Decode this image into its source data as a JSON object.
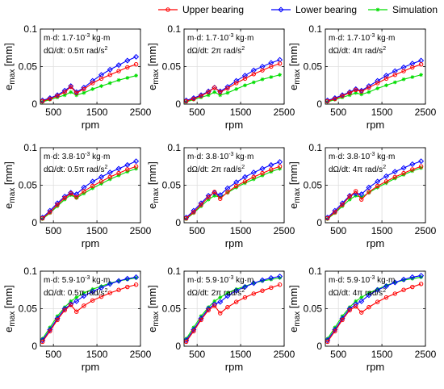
{
  "figure": {
    "x_label": "rpm",
    "y_label_main": "e",
    "y_label_sub": "max",
    "y_label_unit": " [mm]"
  },
  "legend": {
    "entries": [
      {
        "label": "Upper bearing",
        "color": "#ff0000",
        "marker": "circle"
      },
      {
        "label": "Lower bearing",
        "color": "#0000ff",
        "marker": "diamond"
      },
      {
        "label": "Simulation",
        "color": "#00dd00",
        "marker": "star"
      }
    ]
  },
  "colors": {
    "upper": "#ff0000",
    "lower": "#0000ff",
    "simulation": "#00dd00"
  },
  "chart_data": [
    {
      "type": "line",
      "row": 1,
      "col": 1,
      "annotation": {
        "md_value": "1.7",
        "md_exp": "-3",
        "md_unit": " kg·m",
        "rate_value": "0.5π",
        "rate_unit": " rad/s",
        "rate_exp": "2"
      },
      "xlim": [
        200,
        2500
      ],
      "ylim": [
        0,
        0.1
      ],
      "xticks": [
        500,
        1500,
        2500
      ],
      "yticks": [
        0,
        0.05,
        0.1
      ],
      "grid": true,
      "x": [
        250,
        420,
        590,
        760,
        900,
        1030,
        1200,
        1400,
        1600,
        1800,
        2000,
        2200,
        2400
      ],
      "series": [
        {
          "name": "Upper bearing",
          "values": [
            0.004,
            0.007,
            0.011,
            0.016,
            0.023,
            0.015,
            0.02,
            0.028,
            0.034,
            0.039,
            0.044,
            0.049,
            0.053
          ]
        },
        {
          "name": "Lower bearing",
          "values": [
            0.005,
            0.008,
            0.012,
            0.018,
            0.024,
            0.016,
            0.022,
            0.031,
            0.039,
            0.046,
            0.052,
            0.058,
            0.063
          ]
        },
        {
          "name": "Simulation",
          "values": [
            0.003,
            0.006,
            0.009,
            0.012,
            0.016,
            0.012,
            0.015,
            0.02,
            0.024,
            0.028,
            0.032,
            0.035,
            0.038
          ]
        }
      ]
    },
    {
      "type": "line",
      "row": 1,
      "col": 2,
      "annotation": {
        "md_value": "1.7",
        "md_exp": "-3",
        "md_unit": " kg·m",
        "rate_value": "2π",
        "rate_unit": " rad/s",
        "rate_exp": "2"
      },
      "xlim": [
        200,
        2500
      ],
      "ylim": [
        0,
        0.1
      ],
      "xticks": [
        500,
        1500,
        2500
      ],
      "yticks": [
        0,
        0.05,
        0.1
      ],
      "grid": true,
      "x": [
        250,
        420,
        590,
        760,
        900,
        1030,
        1200,
        1400,
        1600,
        1800,
        2000,
        2200,
        2400
      ],
      "series": [
        {
          "name": "Upper bearing",
          "values": [
            0.004,
            0.007,
            0.011,
            0.016,
            0.022,
            0.016,
            0.021,
            0.028,
            0.034,
            0.04,
            0.045,
            0.05,
            0.054
          ]
        },
        {
          "name": "Lower bearing",
          "values": [
            0.005,
            0.008,
            0.012,
            0.017,
            0.022,
            0.017,
            0.023,
            0.031,
            0.038,
            0.045,
            0.05,
            0.055,
            0.059
          ]
        },
        {
          "name": "Simulation",
          "values": [
            0.003,
            0.006,
            0.009,
            0.012,
            0.016,
            0.012,
            0.015,
            0.02,
            0.025,
            0.029,
            0.033,
            0.036,
            0.039
          ]
        }
      ]
    },
    {
      "type": "line",
      "row": 1,
      "col": 3,
      "annotation": {
        "md_value": "1.7",
        "md_exp": "-3",
        "md_unit": " kg·m",
        "rate_value": "4π",
        "rate_unit": " rad/s",
        "rate_exp": "2"
      },
      "xlim": [
        200,
        2500
      ],
      "ylim": [
        0,
        0.1
      ],
      "xticks": [
        500,
        1500,
        2500
      ],
      "yticks": [
        0,
        0.05,
        0.1
      ],
      "grid": true,
      "x": [
        250,
        420,
        590,
        760,
        900,
        1030,
        1200,
        1400,
        1600,
        1800,
        2000,
        2200,
        2400
      ],
      "series": [
        {
          "name": "Upper bearing",
          "values": [
            0.004,
            0.007,
            0.011,
            0.015,
            0.019,
            0.017,
            0.022,
            0.028,
            0.034,
            0.039,
            0.044,
            0.049,
            0.053
          ]
        },
        {
          "name": "Lower bearing",
          "values": [
            0.005,
            0.008,
            0.012,
            0.016,
            0.02,
            0.018,
            0.024,
            0.031,
            0.038,
            0.044,
            0.049,
            0.054,
            0.058
          ]
        },
        {
          "name": "Simulation",
          "values": [
            0.003,
            0.006,
            0.009,
            0.012,
            0.015,
            0.013,
            0.016,
            0.021,
            0.025,
            0.029,
            0.033,
            0.036,
            0.039
          ]
        }
      ]
    },
    {
      "type": "line",
      "row": 2,
      "col": 1,
      "annotation": {
        "md_value": "3.8",
        "md_exp": "-3",
        "md_unit": " kg·m",
        "rate_value": "0.5π",
        "rate_unit": " rad/s",
        "rate_exp": "2"
      },
      "xlim": [
        200,
        2500
      ],
      "ylim": [
        0,
        0.1
      ],
      "xticks": [
        500,
        1500,
        2500
      ],
      "yticks": [
        0,
        0.05,
        0.1
      ],
      "grid": true,
      "x": [
        250,
        420,
        590,
        760,
        900,
        1030,
        1200,
        1400,
        1600,
        1800,
        2000,
        2200,
        2400
      ],
      "series": [
        {
          "name": "Upper bearing",
          "values": [
            0.006,
            0.014,
            0.024,
            0.033,
            0.039,
            0.034,
            0.042,
            0.049,
            0.055,
            0.061,
            0.066,
            0.071,
            0.075
          ]
        },
        {
          "name": "Lower bearing",
          "values": [
            0.007,
            0.016,
            0.026,
            0.035,
            0.04,
            0.038,
            0.047,
            0.055,
            0.061,
            0.067,
            0.072,
            0.077,
            0.082
          ]
        },
        {
          "name": "Simulation",
          "values": [
            0.005,
            0.013,
            0.022,
            0.031,
            0.037,
            0.033,
            0.039,
            0.046,
            0.052,
            0.058,
            0.063,
            0.068,
            0.072
          ]
        }
      ]
    },
    {
      "type": "line",
      "row": 2,
      "col": 2,
      "annotation": {
        "md_value": "3.8",
        "md_exp": "-3",
        "md_unit": " kg·m",
        "rate_value": "2π",
        "rate_unit": " rad/s",
        "rate_exp": "2"
      },
      "xlim": [
        200,
        2500
      ],
      "ylim": [
        0,
        0.1
      ],
      "xticks": [
        500,
        1500,
        2500
      ],
      "yticks": [
        0,
        0.05,
        0.1
      ],
      "grid": true,
      "x": [
        250,
        420,
        590,
        760,
        900,
        1030,
        1200,
        1400,
        1600,
        1800,
        2000,
        2200,
        2400
      ],
      "series": [
        {
          "name": "Upper bearing",
          "values": [
            0.006,
            0.014,
            0.024,
            0.034,
            0.041,
            0.032,
            0.041,
            0.049,
            0.055,
            0.061,
            0.066,
            0.071,
            0.075
          ]
        },
        {
          "name": "Lower bearing",
          "values": [
            0.007,
            0.016,
            0.026,
            0.036,
            0.04,
            0.037,
            0.046,
            0.054,
            0.061,
            0.067,
            0.072,
            0.077,
            0.081
          ]
        },
        {
          "name": "Simulation",
          "values": [
            0.005,
            0.013,
            0.022,
            0.031,
            0.036,
            0.034,
            0.04,
            0.047,
            0.053,
            0.058,
            0.063,
            0.068,
            0.072
          ]
        }
      ]
    },
    {
      "type": "line",
      "row": 2,
      "col": 3,
      "annotation": {
        "md_value": "3.8",
        "md_exp": "-3",
        "md_unit": " kg·m",
        "rate_value": "4π",
        "rate_unit": " rad/s",
        "rate_exp": "2"
      },
      "xlim": [
        200,
        2500
      ],
      "ylim": [
        0,
        0.1
      ],
      "xticks": [
        500,
        1500,
        2500
      ],
      "yticks": [
        0,
        0.05,
        0.1
      ],
      "grid": true,
      "x": [
        250,
        420,
        590,
        760,
        900,
        1030,
        1200,
        1400,
        1600,
        1800,
        2000,
        2200,
        2400
      ],
      "series": [
        {
          "name": "Upper bearing",
          "values": [
            0.006,
            0.014,
            0.024,
            0.035,
            0.042,
            0.031,
            0.041,
            0.049,
            0.055,
            0.061,
            0.066,
            0.071,
            0.075
          ]
        },
        {
          "name": "Lower bearing",
          "values": [
            0.007,
            0.016,
            0.026,
            0.036,
            0.039,
            0.038,
            0.047,
            0.055,
            0.062,
            0.068,
            0.073,
            0.078,
            0.082
          ]
        },
        {
          "name": "Simulation",
          "values": [
            0.005,
            0.013,
            0.022,
            0.031,
            0.036,
            0.034,
            0.04,
            0.047,
            0.053,
            0.059,
            0.064,
            0.069,
            0.073
          ]
        }
      ]
    },
    {
      "type": "line",
      "row": 3,
      "col": 1,
      "annotation": {
        "md_value": "5.9",
        "md_exp": "-3",
        "md_unit": " kg·m",
        "rate_value": "0.5π",
        "rate_unit": " rad/s",
        "rate_exp": "2"
      },
      "xlim": [
        200,
        2500
      ],
      "ylim": [
        0,
        0.1
      ],
      "xticks": [
        500,
        1500,
        2500
      ],
      "yticks": [
        0,
        0.05,
        0.1
      ],
      "grid": true,
      "x": [
        250,
        420,
        590,
        760,
        900,
        1030,
        1200,
        1400,
        1600,
        1800,
        2000,
        2200,
        2400
      ],
      "series": [
        {
          "name": "Upper bearing",
          "values": [
            0.006,
            0.02,
            0.035,
            0.048,
            0.055,
            0.046,
            0.054,
            0.061,
            0.066,
            0.071,
            0.075,
            0.079,
            0.082
          ]
        },
        {
          "name": "Lower bearing",
          "values": [
            0.008,
            0.022,
            0.037,
            0.05,
            0.056,
            0.06,
            0.067,
            0.073,
            0.078,
            0.083,
            0.087,
            0.09,
            0.092
          ]
        },
        {
          "name": "Simulation",
          "values": [
            0.01,
            0.025,
            0.04,
            0.052,
            0.06,
            0.065,
            0.071,
            0.076,
            0.08,
            0.084,
            0.087,
            0.089,
            0.091
          ]
        }
      ]
    },
    {
      "type": "line",
      "row": 3,
      "col": 2,
      "annotation": {
        "md_value": "5.9",
        "md_exp": "-3",
        "md_unit": " kg·m",
        "rate_value": "2π",
        "rate_unit": " rad/s",
        "rate_exp": "2"
      },
      "xlim": [
        200,
        2500
      ],
      "ylim": [
        0,
        0.1
      ],
      "xticks": [
        500,
        1500,
        2500
      ],
      "yticks": [
        0,
        0.05,
        0.1
      ],
      "grid": true,
      "x": [
        250,
        420,
        590,
        760,
        900,
        1030,
        1200,
        1400,
        1600,
        1800,
        2000,
        2200,
        2400
      ],
      "series": [
        {
          "name": "Upper bearing",
          "values": [
            0.006,
            0.02,
            0.035,
            0.048,
            0.054,
            0.044,
            0.052,
            0.059,
            0.065,
            0.07,
            0.074,
            0.078,
            0.082
          ]
        },
        {
          "name": "Lower bearing",
          "values": [
            0.008,
            0.022,
            0.037,
            0.05,
            0.056,
            0.059,
            0.067,
            0.074,
            0.079,
            0.084,
            0.088,
            0.091,
            0.093
          ]
        },
        {
          "name": "Simulation",
          "values": [
            0.01,
            0.025,
            0.04,
            0.052,
            0.06,
            0.065,
            0.071,
            0.076,
            0.08,
            0.084,
            0.087,
            0.089,
            0.091
          ]
        }
      ]
    },
    {
      "type": "line",
      "row": 3,
      "col": 3,
      "annotation": {
        "md_value": "5.9",
        "md_exp": "-3",
        "md_unit": " kg·m",
        "rate_value": "4π",
        "rate_unit": " rad/s",
        "rate_exp": "2"
      },
      "xlim": [
        200,
        2500
      ],
      "ylim": [
        0,
        0.1
      ],
      "xticks": [
        500,
        1500,
        2500
      ],
      "yticks": [
        0,
        0.05,
        0.1
      ],
      "grid": true,
      "x": [
        250,
        420,
        590,
        760,
        900,
        1030,
        1200,
        1400,
        1600,
        1800,
        2000,
        2200,
        2400
      ],
      "series": [
        {
          "name": "Upper bearing",
          "values": [
            0.006,
            0.02,
            0.035,
            0.048,
            0.053,
            0.045,
            0.052,
            0.059,
            0.065,
            0.07,
            0.075,
            0.079,
            0.083
          ]
        },
        {
          "name": "Lower bearing",
          "values": [
            0.008,
            0.022,
            0.037,
            0.05,
            0.056,
            0.06,
            0.068,
            0.075,
            0.08,
            0.085,
            0.089,
            0.092,
            0.094
          ]
        },
        {
          "name": "Simulation",
          "values": [
            0.01,
            0.025,
            0.04,
            0.052,
            0.06,
            0.065,
            0.071,
            0.076,
            0.081,
            0.085,
            0.088,
            0.09,
            0.092
          ]
        }
      ]
    }
  ]
}
